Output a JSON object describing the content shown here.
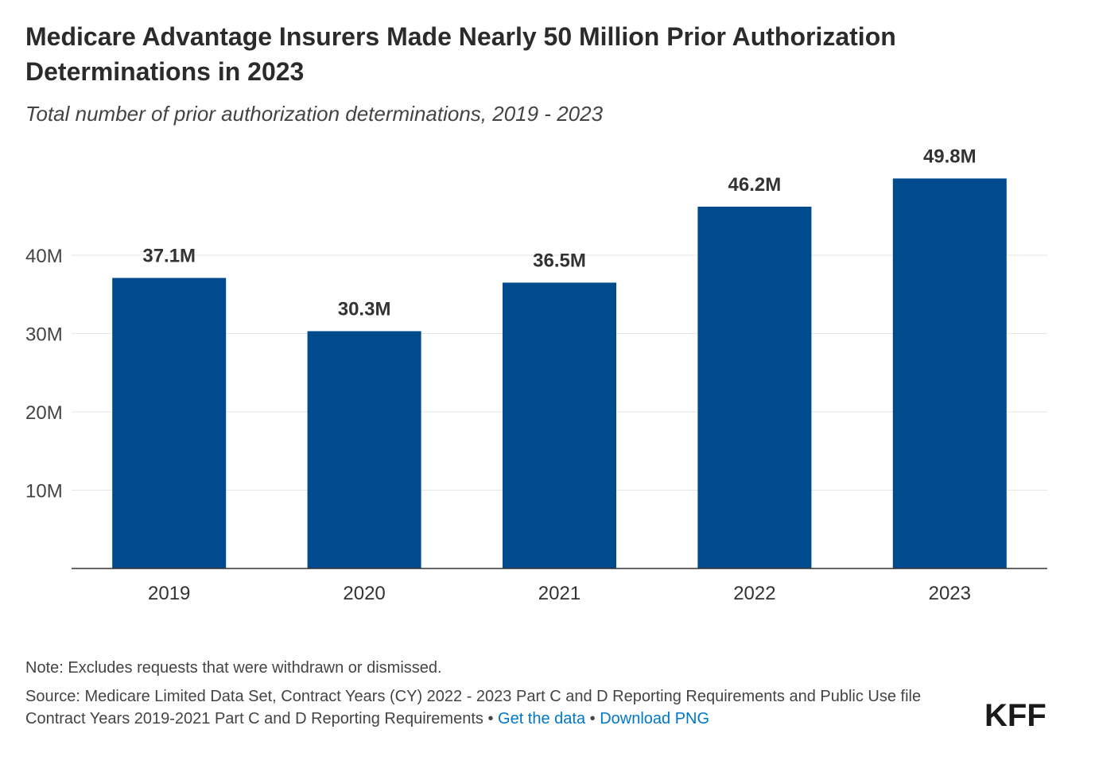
{
  "chart_data": {
    "type": "bar",
    "title": "Medicare Advantage Insurers Made Nearly 50 Million Prior Authorization Determinations in 2023",
    "subtitle": "Total number of prior authorization determinations, 2019 - 2023",
    "categories": [
      "2019",
      "2020",
      "2021",
      "2022",
      "2023"
    ],
    "values": [
      37.1,
      30.3,
      36.5,
      46.2,
      49.8
    ],
    "value_labels": [
      "37.1M",
      "30.3M",
      "36.5M",
      "46.2M",
      "49.8M"
    ],
    "unit": "millions",
    "ylim": [
      0,
      50
    ],
    "yticks": [
      10,
      20,
      30,
      40
    ],
    "ytick_labels": [
      "10M",
      "20M",
      "30M",
      "40M"
    ],
    "xlabel": "",
    "ylabel": "",
    "grid": true,
    "bar_color": "#004b8d"
  },
  "footer": {
    "note": "Note: Excludes requests that were withdrawn or dismissed.",
    "source_line1": "Source: Medicare Limited Data Set, Contract Years (CY) 2022 - 2023 Part C and D Reporting Requirements and Public Use file",
    "source_line2": "Contract Years 2019-2021 Part C and D Reporting Requirements",
    "separator": " • ",
    "get_data_label": "Get the data",
    "download_label": "Download PNG"
  },
  "logo": {
    "text": "KFF"
  },
  "colors": {
    "link": "#0077c8",
    "grid": "#e6e6e6",
    "axis": "#333333"
  }
}
